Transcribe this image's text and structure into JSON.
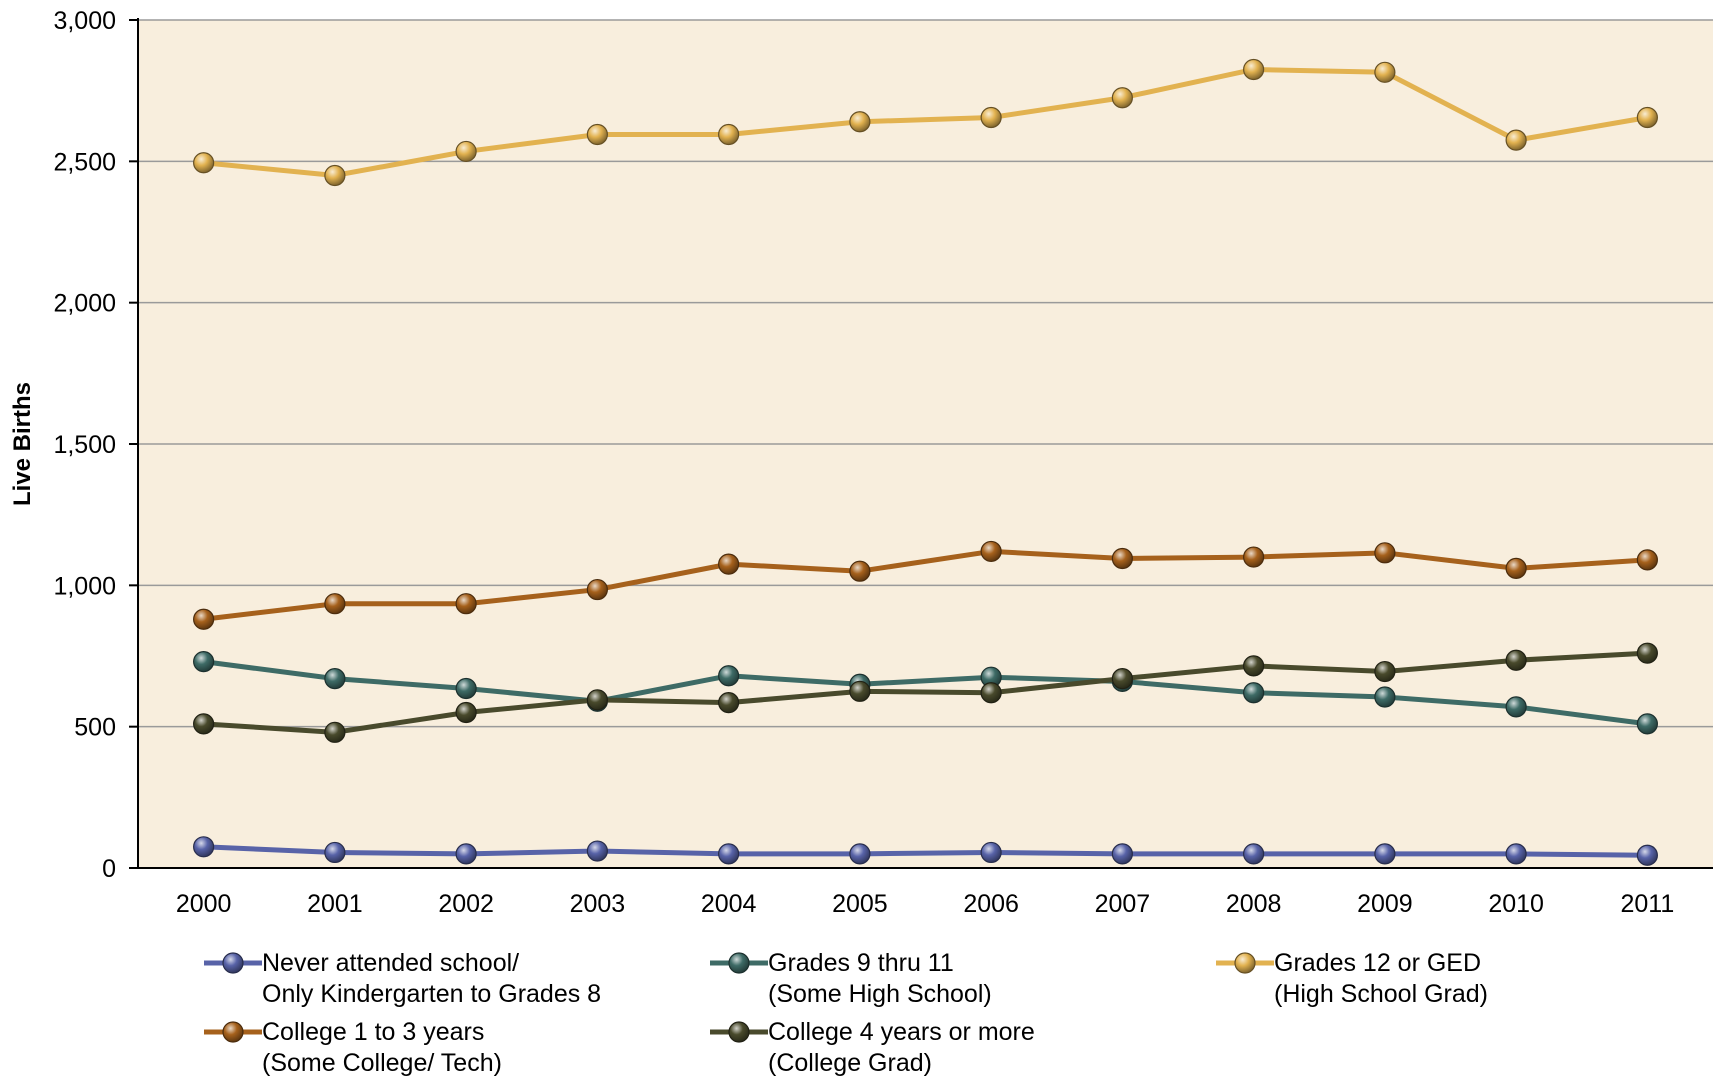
{
  "chart_data": {
    "type": "line",
    "ylabel": "Live Births",
    "xlabel": "",
    "title": "",
    "ylim": [
      0,
      3000
    ],
    "yticks": [
      0,
      500,
      1000,
      1500,
      2000,
      2500,
      3000
    ],
    "ytick_labels": [
      "0",
      "500",
      "1,000",
      "1,500",
      "2,000",
      "2,500",
      "3,000"
    ],
    "categories": [
      "2000",
      "2001",
      "2002",
      "2003",
      "2004",
      "2005",
      "2006",
      "2007",
      "2008",
      "2009",
      "2010",
      "2011"
    ],
    "grid": "horizontal",
    "legend_position": "bottom",
    "plot_background": "#f8eedd",
    "series": [
      {
        "label_line1": "Never attended school/",
        "label_line2": "Only Kindergarten to Grades 8",
        "color": "#5863a8",
        "values": [
          75,
          55,
          50,
          60,
          50,
          50,
          55,
          50,
          50,
          50,
          50,
          45
        ]
      },
      {
        "label_line1": "Grades 9 thru 11",
        "label_line2": "(Some High School)",
        "color": "#3e6b66",
        "values": [
          730,
          670,
          635,
          590,
          680,
          650,
          675,
          660,
          620,
          605,
          570,
          510
        ]
      },
      {
        "label_line1": "Grades 12 or GED",
        "label_line2": "(High School Grad)",
        "color": "#e2b250",
        "values": [
          2495,
          2450,
          2535,
          2595,
          2595,
          2640,
          2655,
          2725,
          2825,
          2815,
          2575,
          2655
        ]
      },
      {
        "label_line1": "College 1 to 3 years",
        "label_line2": "(Some College/ Tech)",
        "color": "#a6611c",
        "values": [
          880,
          935,
          935,
          985,
          1075,
          1050,
          1120,
          1095,
          1100,
          1115,
          1060,
          1090
        ]
      },
      {
        "label_line1": "College 4 years or more",
        "label_line2": "(College Grad)",
        "color": "#494a2c",
        "values": [
          510,
          480,
          550,
          595,
          585,
          625,
          620,
          670,
          715,
          695,
          735,
          760
        ]
      }
    ]
  }
}
